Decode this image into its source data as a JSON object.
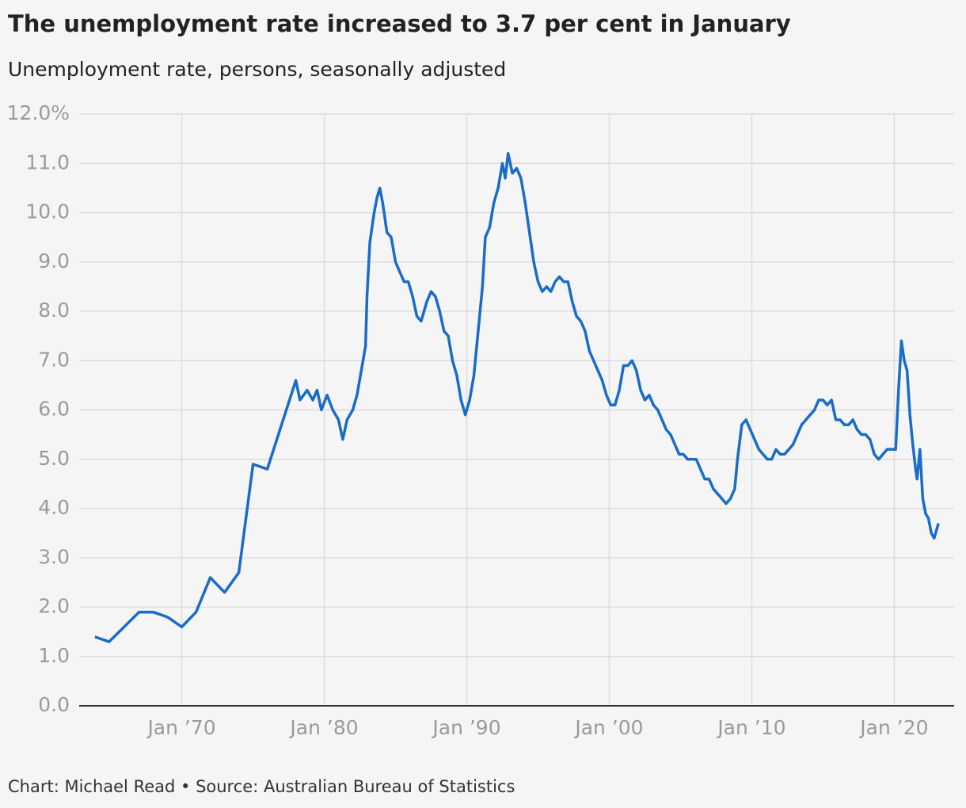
{
  "chart_data": {
    "type": "line",
    "title": "The unemployment rate increased to 3.7 per cent in January",
    "subtitle": "Unemployment rate, persons, seasonally adjusted",
    "footer": "Chart: Michael Read • Source: Australian Bureau of Statistics",
    "x": [
      1963.9,
      1964.9,
      1967,
      1968,
      1969,
      1970,
      1971,
      1972,
      1973,
      1974,
      1975,
      1976,
      1978,
      1978.3,
      1978.8,
      1979.2,
      1979.5,
      1979.8,
      1980.2,
      1980.6,
      1981.0,
      1981.3,
      1981.6,
      1982.0,
      1982.3,
      1982.6,
      1982.9,
      1983.0,
      1983.2,
      1983.5,
      1983.7,
      1983.9,
      1984.1,
      1984.4,
      1984.7,
      1985.0,
      1985.3,
      1985.6,
      1985.9,
      1986.2,
      1986.5,
      1986.8,
      1987.2,
      1987.5,
      1987.8,
      1988.1,
      1988.4,
      1988.7,
      1989.0,
      1989.3,
      1989.6,
      1989.9,
      1990.2,
      1990.5,
      1990.8,
      1991.1,
      1991.3,
      1991.6,
      1991.9,
      1992.2,
      1992.5,
      1992.7,
      1992.9,
      1993.2,
      1993.5,
      1993.8,
      1994.1,
      1994.4,
      1994.7,
      1995.0,
      1995.3,
      1995.6,
      1995.9,
      1996.2,
      1996.5,
      1996.8,
      1997.1,
      1997.4,
      1997.7,
      1998.0,
      1998.3,
      1998.6,
      1998.9,
      1999.2,
      1999.5,
      1999.8,
      2000.1,
      2000.4,
      2000.7,
      2001.0,
      2001.3,
      2001.6,
      2001.9,
      2002.2,
      2002.5,
      2002.8,
      2003.1,
      2003.4,
      2003.7,
      2004.0,
      2004.3,
      2004.6,
      2004.9,
      2005.2,
      2005.5,
      2005.8,
      2006.1,
      2006.4,
      2006.7,
      2007.0,
      2007.3,
      2007.6,
      2007.9,
      2008.2,
      2008.5,
      2008.8,
      2009.0,
      2009.3,
      2009.6,
      2009.9,
      2010.2,
      2010.5,
      2010.8,
      2011.1,
      2011.4,
      2011.7,
      2012.0,
      2012.3,
      2012.6,
      2012.9,
      2013.2,
      2013.5,
      2013.8,
      2014.1,
      2014.4,
      2014.7,
      2015.0,
      2015.3,
      2015.6,
      2015.9,
      2016.2,
      2016.5,
      2016.8,
      2017.1,
      2017.4,
      2017.7,
      2018.0,
      2018.3,
      2018.6,
      2018.9,
      2019.2,
      2019.5,
      2019.8,
      2020.1,
      2020.3,
      2020.5,
      2020.7,
      2020.9,
      2021.1,
      2021.3,
      2021.5,
      2021.6,
      2021.8,
      2022.0,
      2022.2,
      2022.4,
      2022.6,
      2022.8,
      2022.9,
      2023.1
    ],
    "series": [
      {
        "name": "Unemployment rate",
        "color": "#1a6cc8",
        "values": [
          1.4,
          1.3,
          1.9,
          1.9,
          1.8,
          1.6,
          1.9,
          2.6,
          2.3,
          2.7,
          4.9,
          4.8,
          6.6,
          6.2,
          6.4,
          6.2,
          6.4,
          6.0,
          6.3,
          6.0,
          5.8,
          5.4,
          5.8,
          6.0,
          6.3,
          6.8,
          7.3,
          8.3,
          9.4,
          10.0,
          10.3,
          10.5,
          10.2,
          9.6,
          9.5,
          9.0,
          8.8,
          8.6,
          8.6,
          8.3,
          7.9,
          7.8,
          8.2,
          8.4,
          8.3,
          8.0,
          7.6,
          7.5,
          7.0,
          6.7,
          6.2,
          5.9,
          6.2,
          6.7,
          7.6,
          8.5,
          9.5,
          9.7,
          10.2,
          10.5,
          11.0,
          10.7,
          11.2,
          10.8,
          10.9,
          10.7,
          10.2,
          9.6,
          9.0,
          8.6,
          8.4,
          8.5,
          8.4,
          8.6,
          8.7,
          8.6,
          8.6,
          8.2,
          7.9,
          7.8,
          7.6,
          7.2,
          7.0,
          6.8,
          6.6,
          6.3,
          6.1,
          6.1,
          6.4,
          6.9,
          6.9,
          7.0,
          6.8,
          6.4,
          6.2,
          6.3,
          6.1,
          6.0,
          5.8,
          5.6,
          5.5,
          5.3,
          5.1,
          5.1,
          5.0,
          5.0,
          5.0,
          4.8,
          4.6,
          4.6,
          4.4,
          4.3,
          4.2,
          4.1,
          4.2,
          4.4,
          5.0,
          5.7,
          5.8,
          5.6,
          5.4,
          5.2,
          5.1,
          5.0,
          5.0,
          5.2,
          5.1,
          5.1,
          5.2,
          5.3,
          5.5,
          5.7,
          5.8,
          5.9,
          6.0,
          6.2,
          6.2,
          6.1,
          6.2,
          5.8,
          5.8,
          5.7,
          5.7,
          5.8,
          5.6,
          5.5,
          5.5,
          5.4,
          5.1,
          5.0,
          5.1,
          5.2,
          5.2,
          5.2,
          6.4,
          7.4,
          7.0,
          6.8,
          5.9,
          5.3,
          4.8,
          4.6,
          5.2,
          4.2,
          3.9,
          3.8,
          3.5,
          3.4,
          3.5,
          3.7
        ]
      }
    ],
    "xlim": [
      1962.8,
      2024.2
    ],
    "xticks": [
      {
        "value": 1970,
        "label": "Jan ’70"
      },
      {
        "value": 1980,
        "label": "Jan ’80"
      },
      {
        "value": 1990,
        "label": "Jan ’90"
      },
      {
        "value": 2000,
        "label": "Jan ’00"
      },
      {
        "value": 2010,
        "label": "Jan ’10"
      },
      {
        "value": 2020,
        "label": "Jan ’20"
      }
    ],
    "ylim": [
      0,
      12
    ],
    "yticks": [
      {
        "value": 0,
        "label": "0.0"
      },
      {
        "value": 1,
        "label": "1.0"
      },
      {
        "value": 2,
        "label": "2.0"
      },
      {
        "value": 3,
        "label": "3.0"
      },
      {
        "value": 4,
        "label": "4.0"
      },
      {
        "value": 5,
        "label": "5.0"
      },
      {
        "value": 6,
        "label": "6.0"
      },
      {
        "value": 7,
        "label": "7.0"
      },
      {
        "value": 8,
        "label": "8.0"
      },
      {
        "value": 9,
        "label": "9.0"
      },
      {
        "value": 10,
        "label": "10.0"
      },
      {
        "value": 11,
        "label": "11.0"
      },
      {
        "value": 12,
        "label": "12.0%"
      }
    ],
    "grid": true
  }
}
